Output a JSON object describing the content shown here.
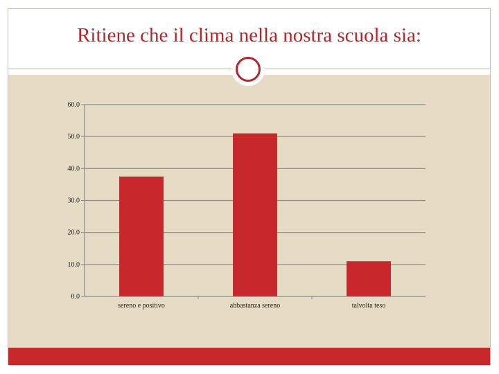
{
  "slide": {
    "title": "Ritiene che il clima nella nostra scuola sia:"
  },
  "colors": {
    "accent": "#c8282c",
    "title": "#b4262a",
    "background": "#e6dcc6",
    "gridline": "#8a8a8a"
  },
  "chart_data": {
    "type": "bar",
    "title": "",
    "xlabel": "",
    "ylabel": "",
    "categories": [
      "sereno e positivo",
      "abbastanza sereno",
      "talvolta teso"
    ],
    "values": [
      37.5,
      51.0,
      11.0
    ],
    "ylim": [
      0,
      60
    ],
    "yticks": [
      0,
      10,
      20,
      30,
      40,
      50,
      60
    ],
    "ytick_labels": [
      "0.0",
      "10.0",
      "20.0",
      "30.0",
      "40.0",
      "50.0",
      "60.0"
    ],
    "grid": true,
    "legend": "none"
  }
}
